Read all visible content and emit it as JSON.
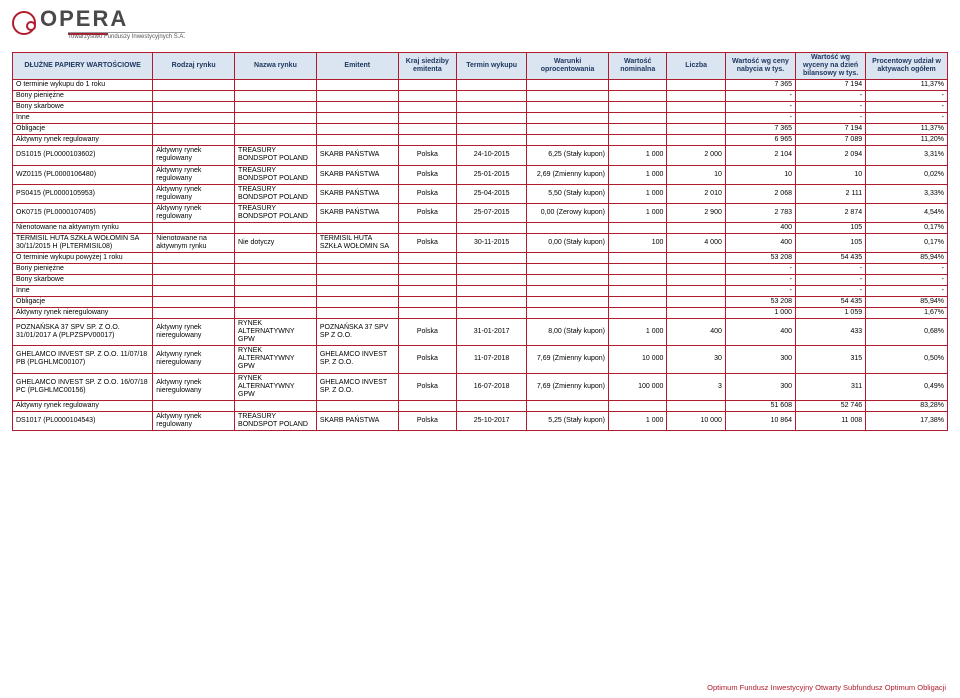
{
  "logo": {
    "brand": "OPERA",
    "sub": "Towarzystwo Funduszy Inwestycyjnych S.A."
  },
  "footer": "Optimum Fundusz Inwestycyjny Otwarty Subfundusz Optimum Obligacji",
  "table": {
    "headerColor": "#dbe5f1",
    "headerTextColor": "#1f3860",
    "borderColor": "#b01c2e",
    "columns": [
      {
        "label": "DŁUŻNE PAPIERY WARTOŚCIOWE",
        "w": 12
      },
      {
        "label": "Rodzaj rynku",
        "w": 7
      },
      {
        "label": "Nazwa rynku",
        "w": 7
      },
      {
        "label": "Emitent",
        "w": 7
      },
      {
        "label": "Kraj siedziby emitenta",
        "w": 5
      },
      {
        "label": "Termin wykupu",
        "w": 6
      },
      {
        "label": "Warunki oprocentowania",
        "w": 7
      },
      {
        "label": "Wartość nominalna",
        "w": 5
      },
      {
        "label": "Liczba",
        "w": 5
      },
      {
        "label": "Wartość wg ceny nabycia w tys.",
        "w": 6
      },
      {
        "label": "Wartość wg wyceny na dzień bilansowy w tys.",
        "w": 6
      },
      {
        "label": "Procentowy udział w aktywach ogółem",
        "w": 7
      }
    ]
  },
  "rows": [
    {
      "t": "sec",
      "c": [
        "O terminie wykupu do 1 roku",
        "",
        "",
        "",
        "",
        "",
        "",
        "",
        "",
        "7 365",
        "7 194",
        "11,37%"
      ]
    },
    {
      "t": "sec",
      "c": [
        "Bony pieniężne",
        "",
        "",
        "",
        "",
        "",
        "",
        "",
        "",
        "-",
        "-",
        "-"
      ]
    },
    {
      "t": "sec",
      "c": [
        "Bony skarbowe",
        "",
        "",
        "",
        "",
        "",
        "",
        "",
        "",
        "-",
        "-",
        "-"
      ]
    },
    {
      "t": "sec",
      "c": [
        "Inne",
        "",
        "",
        "",
        "",
        "",
        "",
        "",
        "",
        "-",
        "-",
        "-"
      ]
    },
    {
      "t": "sec",
      "c": [
        "Obligacje",
        "",
        "",
        "",
        "",
        "",
        "",
        "",
        "",
        "7 365",
        "7 194",
        "11,37%"
      ]
    },
    {
      "t": "sec",
      "c": [
        "Aktywny rynek regulowany",
        "",
        "",
        "",
        "",
        "",
        "",
        "",
        "",
        "6 965",
        "7 089",
        "11,20%"
      ]
    },
    {
      "t": "d",
      "c": [
        "DS1015 (PL0000103602)",
        "Aktywny rynek regulowany",
        "TREASURY BONDSPOT POLAND",
        "SKARB PAŃSTWA",
        "Polska",
        "24-10-2015",
        "6,25 (Stały kupon)",
        "1 000",
        "2 000",
        "2 104",
        "2 094",
        "3,31%"
      ]
    },
    {
      "t": "d",
      "c": [
        "WZ0115 (PL0000106480)",
        "Aktywny rynek regulowany",
        "TREASURY BONDSPOT POLAND",
        "SKARB PAŃSTWA",
        "Polska",
        "25-01-2015",
        "2,69 (Zmienny kupon)",
        "1 000",
        "10",
        "10",
        "10",
        "0,02%"
      ]
    },
    {
      "t": "d",
      "c": [
        "PS0415 (PL0000105953)",
        "Aktywny rynek regulowany",
        "TREASURY BONDSPOT POLAND",
        "SKARB PAŃSTWA",
        "Polska",
        "25-04-2015",
        "5,50 (Stały kupon)",
        "1 000",
        "2 010",
        "2 068",
        "2 111",
        "3,33%"
      ]
    },
    {
      "t": "d",
      "c": [
        "OK0715 (PL0000107405)",
        "Aktywny rynek regulowany",
        "TREASURY BONDSPOT POLAND",
        "SKARB PAŃSTWA",
        "Polska",
        "25-07-2015",
        "0,00 (Zerowy kupon)",
        "1 000",
        "2 900",
        "2 783",
        "2 874",
        "4,54%"
      ]
    },
    {
      "t": "sec",
      "c": [
        "Nienotowane na aktywnym rynku",
        "",
        "",
        "",
        "",
        "",
        "",
        "",
        "",
        "400",
        "105",
        "0,17%"
      ]
    },
    {
      "t": "d",
      "c": [
        "TERMISIL HUTA SZKŁA WOŁOMIN SA 30/11/2015 H (PLTERMISIL08)",
        "Nienotowane na aktywnym rynku",
        "Nie dotyczy",
        "TERMISIL HUTA SZKŁA WOŁOMIN SA",
        "Polska",
        "30-11-2015",
        "0,00 (Stały kupon)",
        "100",
        "4 000",
        "400",
        "105",
        "0,17%"
      ]
    },
    {
      "t": "sec",
      "c": [
        "O terminie wykupu powyżej 1 roku",
        "",
        "",
        "",
        "",
        "",
        "",
        "",
        "",
        "53 208",
        "54 435",
        "85,94%"
      ]
    },
    {
      "t": "sec",
      "c": [
        "Bony pieniężne",
        "",
        "",
        "",
        "",
        "",
        "",
        "",
        "",
        "-",
        "-",
        "-"
      ]
    },
    {
      "t": "sec",
      "c": [
        "Bony skarbowe",
        "",
        "",
        "",
        "",
        "",
        "",
        "",
        "",
        "-",
        "-",
        "-"
      ]
    },
    {
      "t": "sec",
      "c": [
        "Inne",
        "",
        "",
        "",
        "",
        "",
        "",
        "",
        "",
        "-",
        "-",
        "-"
      ]
    },
    {
      "t": "sec",
      "c": [
        "Obligacje",
        "",
        "",
        "",
        "",
        "",
        "",
        "",
        "",
        "53 208",
        "54 435",
        "85,94%"
      ]
    },
    {
      "t": "sec",
      "c": [
        "Aktywny rynek nieregulowany",
        "",
        "",
        "",
        "",
        "",
        "",
        "",
        "",
        "1 000",
        "1 059",
        "1,67%"
      ]
    },
    {
      "t": "d",
      "c": [
        "POZNAŃSKA 37 SPV SP. Z O.O. 31/01/2017 A (PLPZSPV00017)",
        "Aktywny rynek nieregulowany",
        "RYNEK ALTERNATYWNY GPW",
        "POZNAŃSKA 37 SPV SP Z O.O.",
        "Polska",
        "31-01-2017",
        "8,00 (Stały kupon)",
        "1 000",
        "400",
        "400",
        "433",
        "0,68%"
      ]
    },
    {
      "t": "d",
      "c": [
        "GHELAMCO INVEST SP. Z O.O. 11/07/18 PB (PLGHLMC00107)",
        "Aktywny rynek nieregulowany",
        "RYNEK ALTERNATYWNY GPW",
        "GHELAMCO INVEST SP. Z O.O.",
        "Polska",
        "11-07-2018",
        "7,69 (Zmienny kupon)",
        "10 000",
        "30",
        "300",
        "315",
        "0,50%"
      ]
    },
    {
      "t": "d",
      "c": [
        "GHELAMCO INVEST SP. Z O.O. 16/07/18 PC (PLGHLMC00156)",
        "Aktywny rynek nieregulowany",
        "RYNEK ALTERNATYWNY GPW",
        "GHELAMCO INVEST SP. Z O.O.",
        "Polska",
        "16-07-2018",
        "7,69 (Zmienny kupon)",
        "100 000",
        "3",
        "300",
        "311",
        "0,49%"
      ]
    },
    {
      "t": "sec",
      "c": [
        "Aktywny rynek regulowany",
        "",
        "",
        "",
        "",
        "",
        "",
        "",
        "",
        "51 608",
        "52 746",
        "83,28%"
      ]
    },
    {
      "t": "d",
      "c": [
        "DS1017 (PL0000104543)",
        "Aktywny rynek regulowany",
        "TREASURY BONDSPOT POLAND",
        "SKARB PAŃSTWA",
        "Polska",
        "25-10-2017",
        "5,25 (Stały kupon)",
        "1 000",
        "10 000",
        "10 864",
        "11 008",
        "17,38%"
      ]
    }
  ]
}
